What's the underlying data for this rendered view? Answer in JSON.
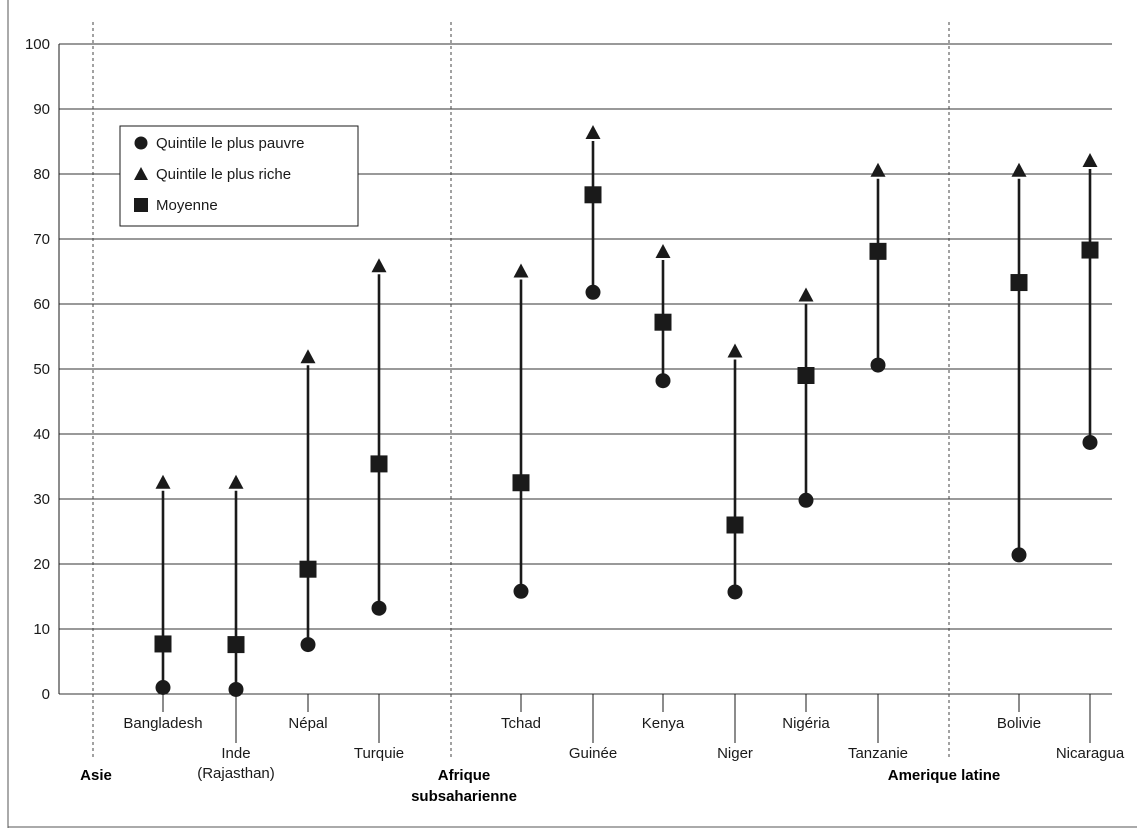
{
  "chart_data": {
    "type": "scatter",
    "title": "",
    "xlabel": "",
    "ylabel": "",
    "ylim": [
      0,
      100
    ],
    "yticks": [
      0,
      10,
      20,
      30,
      40,
      50,
      60,
      70,
      80,
      90,
      100
    ],
    "grid": "horizontal",
    "legend_position": "top-left",
    "legend": [
      {
        "marker": "circle",
        "label": "Quintile le plus pauvre"
      },
      {
        "marker": "triangle",
        "label": "Quintile le plus riche"
      },
      {
        "marker": "square",
        "label": "Moyenne"
      }
    ],
    "groups": [
      {
        "name": "Asie",
        "categories": [
          "Bangladesh",
          "Inde (Rajasthan)",
          "Népal",
          "Turquie"
        ]
      },
      {
        "name": "Afrique subsaharienne",
        "categories": [
          "Tchad",
          "Guinée",
          "Kenya",
          "Niger",
          "Nigéria",
          "Tanzanie"
        ]
      },
      {
        "name": "Amerique latine",
        "categories": [
          "Bolivie",
          "Nicaragua"
        ]
      }
    ],
    "categories": [
      {
        "label": [
          "Bangladesh"
        ]
      },
      {
        "label": [
          "Inde",
          "(Rajasthan)"
        ]
      },
      {
        "label": [
          "Népal"
        ]
      },
      {
        "label": [
          "Turquie"
        ]
      },
      {
        "label": [
          "Tchad"
        ]
      },
      {
        "label": [
          "Guinée"
        ]
      },
      {
        "label": [
          "Kenya"
        ]
      },
      {
        "label": [
          "Niger"
        ]
      },
      {
        "label": [
          "Nigéria"
        ]
      },
      {
        "label": [
          "Tanzanie"
        ]
      },
      {
        "label": [
          "Bolivie"
        ]
      },
      {
        "label": [
          "Nicaragua"
        ]
      }
    ],
    "series": [
      {
        "name": "Quintile le plus pauvre",
        "marker": "circle",
        "values": [
          1,
          0.7,
          7.6,
          13.2,
          15.8,
          61.8,
          48.2,
          15.7,
          29.8,
          50.6,
          21.4,
          38.7
        ]
      },
      {
        "name": "Quintile le plus riche",
        "marker": "triangle",
        "values": [
          32.5,
          32.5,
          51.8,
          65.8,
          65,
          86.3,
          68,
          52.7,
          61.3,
          80.5,
          80.5,
          82
        ]
      },
      {
        "name": "Moyenne",
        "marker": "square",
        "values": [
          7.7,
          7.6,
          19.2,
          35.4,
          32.5,
          76.8,
          57.2,
          26,
          49,
          68.1,
          63.3,
          68.3
        ]
      }
    ]
  },
  "colors": {
    "ink": "#1a1a1a",
    "grid": "#333333"
  }
}
